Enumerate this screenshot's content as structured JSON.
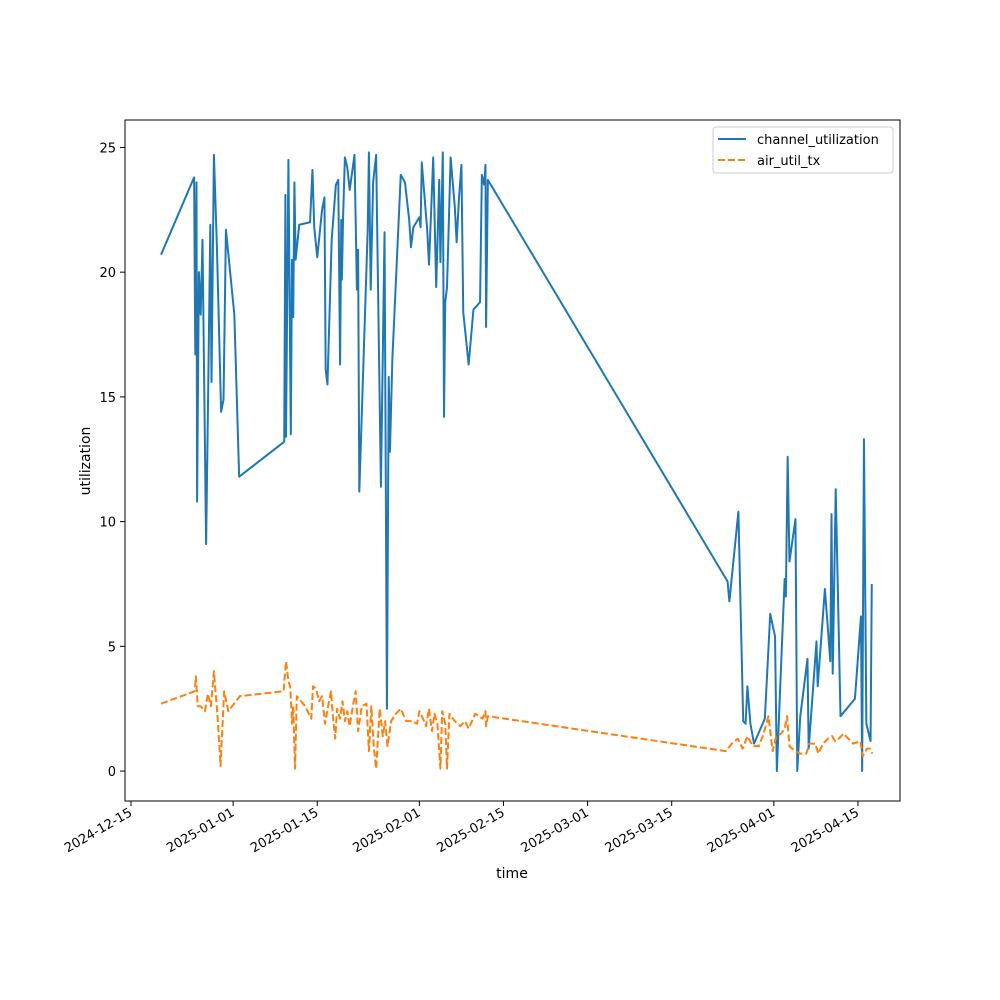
{
  "chart_data": {
    "type": "line",
    "title": "",
    "xlabel": "time",
    "ylabel": "utilization",
    "x_axis_type": "date",
    "xlim": [
      "2024-12-14",
      "2025-04-22"
    ],
    "ylim": [
      -1.2,
      26.1
    ],
    "grid": false,
    "legend_position": "top-right",
    "x_ticks": [
      "2024-12-15",
      "2025-01-01",
      "2025-01-15",
      "2025-02-01",
      "2025-02-15",
      "2025-03-01",
      "2025-03-15",
      "2025-04-01",
      "2025-04-15"
    ],
    "y_ticks": [
      0,
      5,
      10,
      15,
      20,
      25
    ],
    "series": [
      {
        "name": "channel_utilization",
        "color": "#1f77b4",
        "dash": "solid",
        "points": [
          [
            "2024-12-20",
            20.7
          ],
          [
            "2024-12-25.5",
            23.8
          ],
          [
            "2024-12-25.7",
            16.7
          ],
          [
            "2024-12-25.9",
            23.6
          ],
          [
            "2024-12-26.0",
            10.8
          ],
          [
            "2024-12-26.3",
            20.0
          ],
          [
            "2024-12-26.6",
            18.3
          ],
          [
            "2024-12-26.9",
            21.3
          ],
          [
            "2024-12-27.5",
            9.1
          ],
          [
            "2024-12-27.9",
            16.2
          ],
          [
            "2024-12-28.2",
            21.9
          ],
          [
            "2024-12-28.4",
            15.6
          ],
          [
            "2024-12-28.8",
            24.7
          ],
          [
            "2024-12-29.3",
            21.0
          ],
          [
            "2024-12-30.0",
            14.4
          ],
          [
            "2024-12-30.4",
            14.9
          ],
          [
            "2024-12-30.8",
            21.7
          ],
          [
            "2025-01-01.2",
            18.3
          ],
          [
            "2025-01-02.0",
            11.8
          ],
          [
            "2025-01-09.5",
            13.2
          ],
          [
            "2025-01-09.7",
            23.1
          ],
          [
            "2025-01-09.8",
            13.4
          ],
          [
            "2025-01-10.2",
            24.5
          ],
          [
            "2025-01-10.6",
            13.5
          ],
          [
            "2025-01-10.8",
            20.5
          ],
          [
            "2025-01-11.0",
            18.2
          ],
          [
            "2025-01-11.2",
            23.6
          ],
          [
            "2025-01-11.4",
            20.5
          ],
          [
            "2025-01-12.0",
            21.9
          ],
          [
            "2025-01-13.8",
            22.0
          ],
          [
            "2025-01-14.2",
            24.1
          ],
          [
            "2025-01-14.5",
            21.8
          ],
          [
            "2025-01-15.0",
            20.6
          ],
          [
            "2025-01-15.8",
            22.5
          ],
          [
            "2025-01-16.2",
            23.0
          ],
          [
            "2025-01-16.4",
            16.1
          ],
          [
            "2025-01-16.7",
            15.5
          ],
          [
            "2025-01-17.4",
            21.3
          ],
          [
            "2025-01-18.1",
            23.5
          ],
          [
            "2025-01-18.5",
            23.7
          ],
          [
            "2025-01-18.8",
            16.3
          ],
          [
            "2025-01-19.0",
            22.1
          ],
          [
            "2025-01-19.1",
            19.7
          ],
          [
            "2025-01-19.3",
            22.2
          ],
          [
            "2025-01-19.6",
            24.6
          ],
          [
            "2025-01-20.0",
            24.2
          ],
          [
            "2025-01-20.4",
            23.3
          ],
          [
            "2025-01-21.2",
            24.7
          ],
          [
            "2025-01-21.6",
            19.3
          ],
          [
            "2025-01-21.8",
            20.9
          ],
          [
            "2025-01-22.0",
            11.2
          ],
          [
            "2025-01-23.4",
            21.7
          ],
          [
            "2025-01-23.6",
            24.8
          ],
          [
            "2025-01-23.9",
            19.3
          ],
          [
            "2025-01-24.3",
            23.6
          ],
          [
            "2025-01-24.8",
            24.7
          ],
          [
            "2025-01-25.6",
            11.4
          ],
          [
            "2025-01-26.2",
            21.6
          ],
          [
            "2025-01-26.6",
            2.5
          ],
          [
            "2025-01-26.9",
            15.8
          ],
          [
            "2025-01-27.1",
            12.8
          ],
          [
            "2025-01-27.5",
            16.5
          ],
          [
            "2025-01-28.9",
            23.9
          ],
          [
            "2025-01-29.6",
            23.6
          ],
          [
            "2025-01-30.3",
            22.1
          ],
          [
            "2025-01-30.6",
            21.0
          ],
          [
            "2025-01-31.0",
            21.8
          ],
          [
            "2025-02-01.0",
            22.2
          ],
          [
            "2025-02-01.2",
            21.8
          ],
          [
            "2025-02-01.4",
            24.4
          ],
          [
            "2025-02-02.3",
            21.7
          ],
          [
            "2025-02-02.6",
            20.3
          ],
          [
            "2025-02-02.9",
            22.1
          ],
          [
            "2025-02-03.3",
            24.6
          ],
          [
            "2025-02-03.8",
            19.4
          ],
          [
            "2025-02-04.3",
            23.7
          ],
          [
            "2025-02-04.5",
            20.4
          ],
          [
            "2025-02-04.9",
            24.8
          ],
          [
            "2025-02-05.1",
            14.2
          ],
          [
            "2025-02-05.3",
            18.8
          ],
          [
            "2025-02-05.6",
            19.4
          ],
          [
            "2025-02-06.2",
            24.6
          ],
          [
            "2025-02-06.9",
            22.6
          ],
          [
            "2025-02-07.2",
            21.2
          ],
          [
            "2025-02-07.6",
            23.0
          ],
          [
            "2025-02-08.0",
            24.3
          ],
          [
            "2025-02-08.3",
            18.4
          ],
          [
            "2025-02-09.2",
            16.3
          ],
          [
            "2025-02-10.0",
            18.5
          ],
          [
            "2025-02-11.1",
            18.8
          ],
          [
            "2025-02-11.4",
            23.9
          ],
          [
            "2025-02-11.8",
            23.5
          ],
          [
            "2025-02-12.0",
            24.3
          ],
          [
            "2025-02-12.1",
            17.8
          ],
          [
            "2025-02-12.4",
            23.7
          ],
          [
            "2025-03-24.3",
            7.6
          ],
          [
            "2025-03-24.6",
            6.8
          ],
          [
            "2025-03-26.1",
            10.4
          ],
          [
            "2025-03-26.9",
            2.0
          ],
          [
            "2025-03-27.3",
            1.9
          ],
          [
            "2025-03-27.6",
            3.4
          ],
          [
            "2025-03-28.1",
            1.9
          ],
          [
            "2025-03-28.7",
            1.1
          ],
          [
            "2025-03-30.5",
            2.1
          ],
          [
            "2025-03-31.4",
            6.3
          ],
          [
            "2025-04-01.2",
            5.4
          ],
          [
            "2025-04-01.5",
            0.0
          ],
          [
            "2025-04-02.2",
            4.2
          ],
          [
            "2025-04-02.8",
            7.7
          ],
          [
            "2025-04-03.0",
            7.0
          ],
          [
            "2025-04-03.3",
            12.6
          ],
          [
            "2025-04-03.6",
            8.4
          ],
          [
            "2025-04-04.6",
            10.1
          ],
          [
            "2025-04-04.9",
            0.0
          ],
          [
            "2025-04-05.4",
            2.2
          ],
          [
            "2025-04-06.6",
            4.5
          ],
          [
            "2025-04-06.8",
            0.9
          ],
          [
            "2025-04-08.1",
            5.2
          ],
          [
            "2025-04-08.3",
            3.4
          ],
          [
            "2025-04-09.5",
            7.3
          ],
          [
            "2025-04-10.4",
            4.4
          ],
          [
            "2025-04-10.6",
            10.3
          ],
          [
            "2025-04-10.8",
            3.9
          ],
          [
            "2025-04-11.3",
            11.3
          ],
          [
            "2025-04-12.1",
            2.2
          ],
          [
            "2025-04-14.5",
            2.9
          ],
          [
            "2025-04-15.5",
            6.2
          ],
          [
            "2025-04-15.7",
            0.0
          ],
          [
            "2025-04-16.0",
            13.3
          ],
          [
            "2025-04-16.4",
            1.9
          ],
          [
            "2025-04-17.1",
            1.2
          ],
          [
            "2025-04-17.3",
            7.5
          ]
        ]
      },
      {
        "name": "air_util_tx",
        "color": "#ff7f0e",
        "dash": "dashed",
        "points": [
          [
            "2024-12-20",
            2.7
          ],
          [
            "2024-12-25.6",
            3.2
          ],
          [
            "2024-12-25.8",
            3.8
          ],
          [
            "2024-12-26.1",
            2.6
          ],
          [
            "2024-12-26.6",
            2.6
          ],
          [
            "2024-12-27.3",
            2.4
          ],
          [
            "2024-12-27.8",
            3.1
          ],
          [
            "2024-12-28.3",
            2.6
          ],
          [
            "2024-12-28.8",
            4.0
          ],
          [
            "2024-12-29.4",
            2.2
          ],
          [
            "2024-12-29.9",
            0.2
          ],
          [
            "2024-12-30.5",
            3.2
          ],
          [
            "2024-12-31.2",
            2.4
          ],
          [
            "2025-01-02.1",
            3.0
          ],
          [
            "2025-01-09.4",
            3.2
          ],
          [
            "2025-01-09.8",
            4.4
          ],
          [
            "2025-01-10.2",
            3.6
          ],
          [
            "2025-01-10.5",
            3.4
          ],
          [
            "2025-01-10.8",
            1.9
          ],
          [
            "2025-01-11.0",
            2.6
          ],
          [
            "2025-01-11.3",
            0.1
          ],
          [
            "2025-01-11.6",
            3.0
          ],
          [
            "2025-01-13.0",
            2.6
          ],
          [
            "2025-01-14.0",
            2.1
          ],
          [
            "2025-01-14.3",
            3.4
          ],
          [
            "2025-01-14.8",
            3.3
          ],
          [
            "2025-01-15.3",
            2.8
          ],
          [
            "2025-01-15.8",
            3.0
          ],
          [
            "2025-01-16.3",
            1.9
          ],
          [
            "2025-01-16.8",
            2.6
          ],
          [
            "2025-01-17.3",
            3.2
          ],
          [
            "2025-01-17.6",
            2.2
          ],
          [
            "2025-01-18.0",
            1.3
          ],
          [
            "2025-01-18.3",
            2.5
          ],
          [
            "2025-01-18.8",
            2.1
          ],
          [
            "2025-01-19.2",
            2.8
          ],
          [
            "2025-01-19.6",
            2.0
          ],
          [
            "2025-01-20.0",
            2.4
          ],
          [
            "2025-01-20.4",
            1.8
          ],
          [
            "2025-01-21.0",
            2.7
          ],
          [
            "2025-01-21.4",
            3.2
          ],
          [
            "2025-01-21.8",
            1.6
          ],
          [
            "2025-01-22.4",
            2.6
          ],
          [
            "2025-01-23.2",
            2.7
          ],
          [
            "2025-01-23.6",
            0.8
          ],
          [
            "2025-01-24.0",
            2.6
          ],
          [
            "2025-01-24.4",
            1.0
          ],
          [
            "2025-01-24.8",
            0.1
          ],
          [
            "2025-01-25.4",
            2.5
          ],
          [
            "2025-01-25.9",
            1.4
          ],
          [
            "2025-01-26.3",
            2.0
          ],
          [
            "2025-01-26.7",
            1.0
          ],
          [
            "2025-01-27.3",
            2.0
          ],
          [
            "2025-01-28.1",
            2.3
          ],
          [
            "2025-01-28.9",
            2.5
          ],
          [
            "2025-01-29.8",
            2.0
          ],
          [
            "2025-01-30.8",
            2.0
          ],
          [
            "2025-01-31.6",
            1.9
          ],
          [
            "2025-02-01.0",
            2.4
          ],
          [
            "2025-02-01.6",
            2.1
          ],
          [
            "2025-02-02.1",
            1.8
          ],
          [
            "2025-02-02.6",
            2.5
          ],
          [
            "2025-02-03.1",
            1.6
          ],
          [
            "2025-02-03.5",
            2.3
          ],
          [
            "2025-02-04.0",
            1.9
          ],
          [
            "2025-02-04.5",
            0.1
          ],
          [
            "2025-02-04.8",
            2.4
          ],
          [
            "2025-02-05.3",
            1.9
          ],
          [
            "2025-02-05.6",
            0.1
          ],
          [
            "2025-02-06.0",
            2.3
          ],
          [
            "2025-02-06.9",
            2.0
          ],
          [
            "2025-02-07.8",
            1.8
          ],
          [
            "2025-02-08.6",
            2.0
          ],
          [
            "2025-02-09.2",
            1.7
          ],
          [
            "2025-02-10.3",
            2.3
          ],
          [
            "2025-02-11.5",
            2.1
          ],
          [
            "2025-02-12.0",
            2.4
          ],
          [
            "2025-02-12.1",
            1.8
          ],
          [
            "2025-02-12.4",
            2.2
          ],
          [
            "2025-03-24.0",
            0.8
          ],
          [
            "2025-03-25.0",
            1.1
          ],
          [
            "2025-03-26.0",
            1.3
          ],
          [
            "2025-03-26.8",
            0.9
          ],
          [
            "2025-03-27.6",
            1.4
          ],
          [
            "2025-03-28.5",
            1.0
          ],
          [
            "2025-03-29.5",
            1.0
          ],
          [
            "2025-03-30.3",
            1.5
          ],
          [
            "2025-03-31.1",
            2.2
          ],
          [
            "2025-03-31.8",
            0.8
          ],
          [
            "2025-04-01.4",
            1.4
          ],
          [
            "2025-04-02.2",
            1.5
          ],
          [
            "2025-04-02.8",
            1.7
          ],
          [
            "2025-04-03.2",
            2.2
          ],
          [
            "2025-04-03.6",
            1.0
          ],
          [
            "2025-04-04.5",
            0.8
          ],
          [
            "2025-04-05.4",
            0.7
          ],
          [
            "2025-04-06.4",
            0.7
          ],
          [
            "2025-04-06.9",
            1.1
          ],
          [
            "2025-04-07.9",
            1.1
          ],
          [
            "2025-04-08.4",
            0.7
          ],
          [
            "2025-04-09.2",
            1.1
          ],
          [
            "2025-04-10.0",
            1.3
          ],
          [
            "2025-04-10.7",
            1.4
          ],
          [
            "2025-04-11.2",
            1.2
          ],
          [
            "2025-04-11.8",
            1.3
          ],
          [
            "2025-04-12.6",
            1.5
          ],
          [
            "2025-04-13.4",
            1.3
          ],
          [
            "2025-04-14.2",
            1.1
          ],
          [
            "2025-04-15.4",
            1.2
          ],
          [
            "2025-04-15.8",
            0.6
          ],
          [
            "2025-04-16.5",
            0.9
          ],
          [
            "2025-04-17.0",
            0.9
          ],
          [
            "2025-04-17.4",
            0.7
          ]
        ]
      }
    ]
  }
}
